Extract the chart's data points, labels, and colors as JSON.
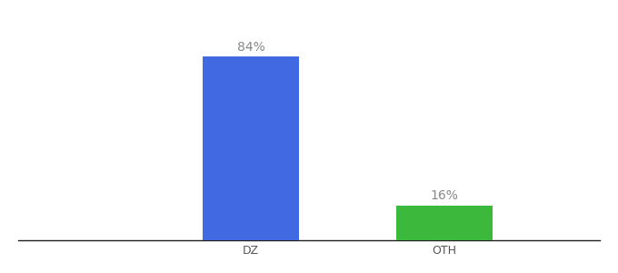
{
  "categories": [
    "DZ",
    "OTH"
  ],
  "values": [
    84,
    16
  ],
  "bar_colors": [
    "#4169e1",
    "#3cb83c"
  ],
  "labels": [
    "84%",
    "16%"
  ],
  "background_color": "#ffffff",
  "ylim": [
    0,
    100
  ],
  "bar_width": 0.5,
  "label_fontsize": 10,
  "tick_fontsize": 9,
  "label_color": "#888888",
  "xlim": [
    -0.5,
    2.5
  ]
}
